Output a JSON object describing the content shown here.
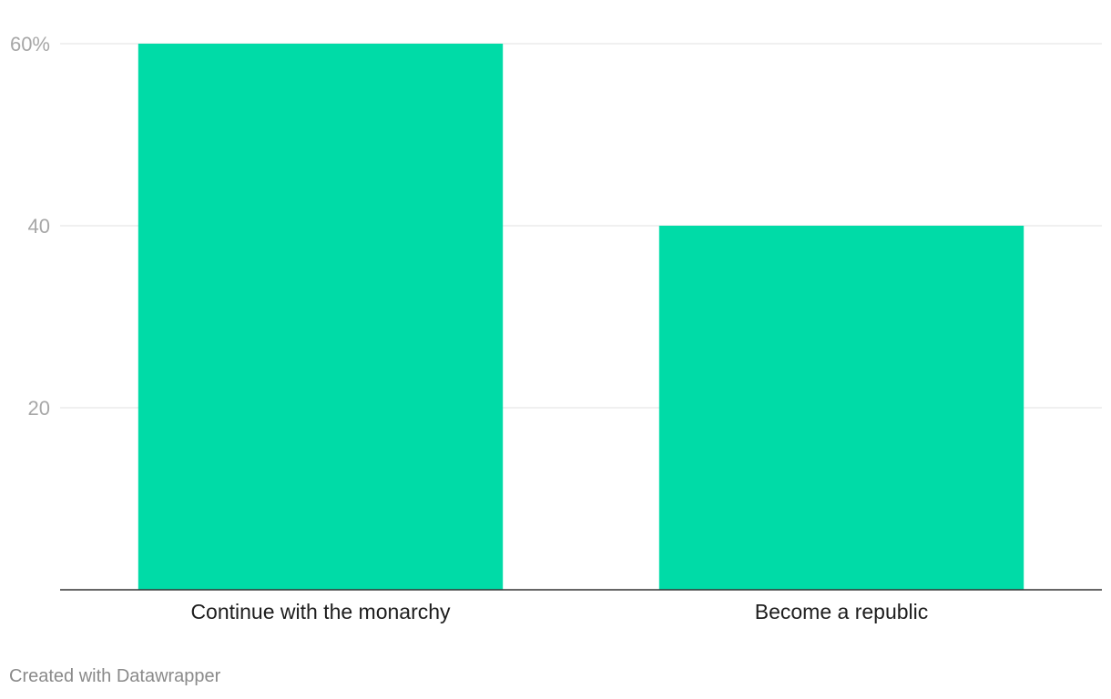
{
  "chart_data": {
    "type": "bar",
    "categories": [
      "Continue with the monarchy",
      "Become a republic"
    ],
    "values": [
      60,
      40
    ],
    "yticks": [
      {
        "value": 60,
        "label": "60%"
      },
      {
        "value": 40,
        "label": "40"
      },
      {
        "value": 20,
        "label": "20"
      }
    ],
    "ylim": [
      0,
      60
    ],
    "bar_color": "#00dba7",
    "grid": true,
    "title": "",
    "xlabel": "",
    "ylabel": ""
  },
  "footer": {
    "credit": "Created with Datawrapper"
  }
}
